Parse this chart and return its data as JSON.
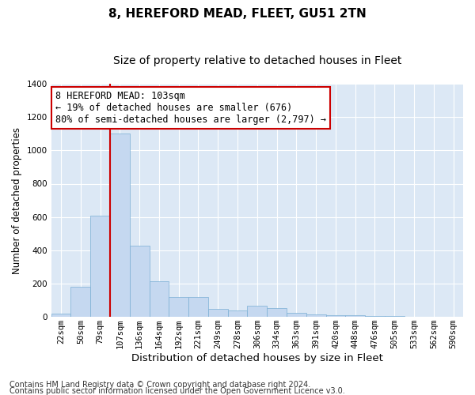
{
  "title1": "8, HEREFORD MEAD, FLEET, GU51 2TN",
  "title2": "Size of property relative to detached houses in Fleet",
  "xlabel": "Distribution of detached houses by size in Fleet",
  "ylabel": "Number of detached properties",
  "bin_labels": [
    "22sqm",
    "50sqm",
    "79sqm",
    "107sqm",
    "136sqm",
    "164sqm",
    "192sqm",
    "221sqm",
    "249sqm",
    "278sqm",
    "306sqm",
    "334sqm",
    "363sqm",
    "391sqm",
    "420sqm",
    "448sqm",
    "476sqm",
    "505sqm",
    "533sqm",
    "562sqm",
    "590sqm"
  ],
  "bar_values": [
    20,
    180,
    610,
    1100,
    430,
    215,
    120,
    120,
    50,
    40,
    65,
    55,
    25,
    15,
    8,
    8,
    4,
    4,
    2,
    1,
    1
  ],
  "bar_color": "#c5d8f0",
  "bar_edgecolor": "#7bafd4",
  "vline_color": "#cc0000",
  "ylim": [
    0,
    1400
  ],
  "yticks": [
    0,
    200,
    400,
    600,
    800,
    1000,
    1200,
    1400
  ],
  "annotation_line1": "8 HEREFORD MEAD: 103sqm",
  "annotation_line2": "← 19% of detached houses are smaller (676)",
  "annotation_line3": "80% of semi-detached houses are larger (2,797) →",
  "annotation_box_color": "#ffffff",
  "annotation_box_edgecolor": "#cc0000",
  "footer1": "Contains HM Land Registry data © Crown copyright and database right 2024.",
  "footer2": "Contains public sector information licensed under the Open Government Licence v3.0.",
  "fig_background": "#ffffff",
  "plot_background": "#dce8f5",
  "grid_color": "#ffffff",
  "title1_fontsize": 11,
  "title2_fontsize": 10,
  "xlabel_fontsize": 9.5,
  "ylabel_fontsize": 8.5,
  "tick_fontsize": 7.5,
  "annotation_fontsize": 8.5,
  "footer_fontsize": 7
}
